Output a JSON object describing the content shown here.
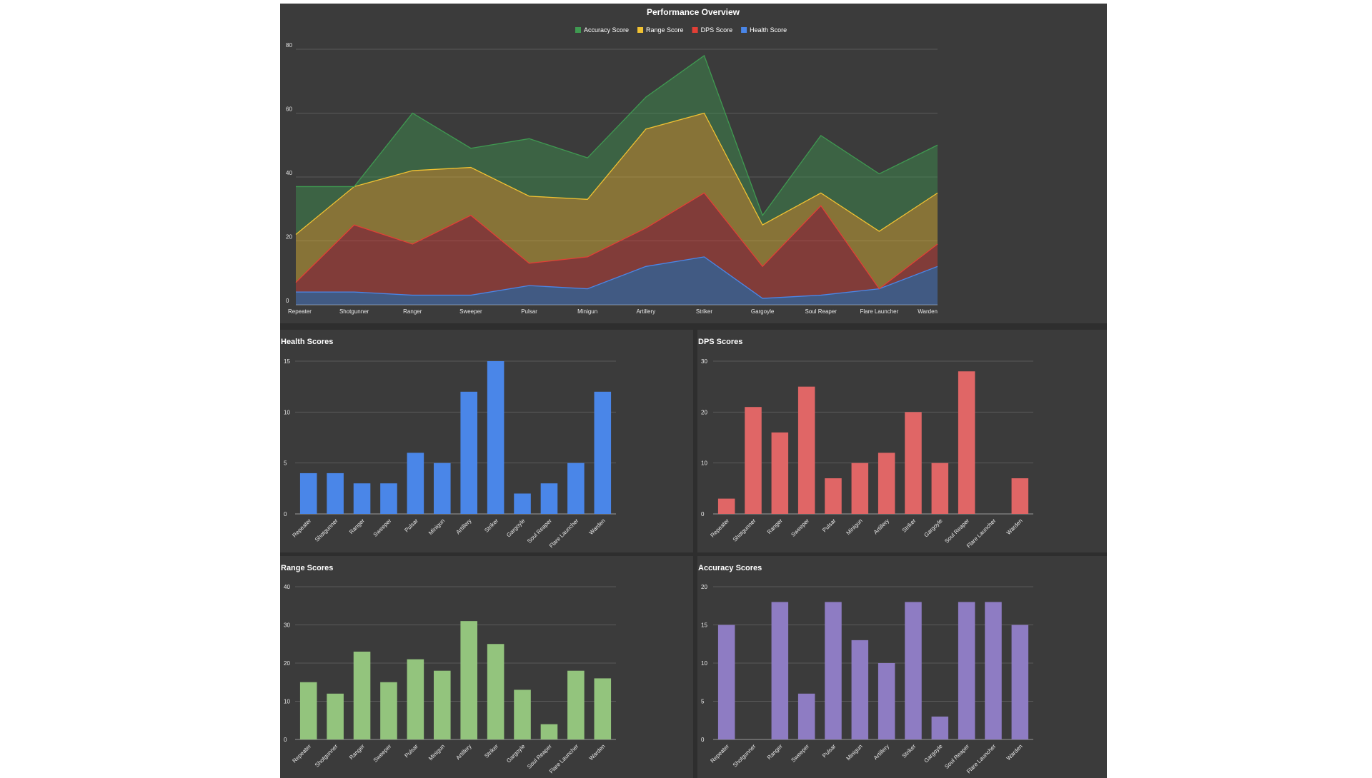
{
  "chart_data": [
    {
      "type": "area",
      "title": "Performance Overview",
      "legend_position": "top",
      "grid": true,
      "stacked": true,
      "ylim": [
        0,
        80
      ],
      "yticks": [
        0,
        20,
        40,
        60,
        80
      ],
      "categories": [
        "Repeater",
        "Shotgunner",
        "Ranger",
        "Sweeper",
        "Pulsar",
        "Minigun",
        "Artillery",
        "Striker",
        "Gargoyle",
        "Soul Reaper",
        "Flare Launcher",
        "Warden"
      ],
      "series": [
        {
          "name": "Accuracy Score",
          "color": "#3f9a51",
          "values": [
            15,
            0,
            18,
            6,
            18,
            13,
            10,
            18,
            3,
            18,
            18,
            15
          ]
        },
        {
          "name": "Range Score",
          "color": "#f1c232",
          "values": [
            15,
            12,
            23,
            15,
            21,
            18,
            31,
            25,
            13,
            4,
            18,
            16
          ]
        },
        {
          "name": "DPS Score",
          "color": "#e23f36",
          "values": [
            3,
            21,
            16,
            25,
            7,
            10,
            12,
            20,
            10,
            28,
            0,
            7
          ]
        },
        {
          "name": "Health Score",
          "color": "#4a86e8",
          "values": [
            4,
            4,
            3,
            3,
            6,
            5,
            12,
            15,
            2,
            3,
            5,
            12
          ]
        }
      ]
    },
    {
      "type": "bar",
      "title": "Health Scores",
      "color": "#4a86e8",
      "ylim": [
        0,
        15
      ],
      "yticks": [
        0,
        5,
        10,
        15
      ],
      "categories": [
        "Repeater",
        "Shotgunner",
        "Ranger",
        "Sweeper",
        "Pulsar",
        "Minigun",
        "Artillery",
        "Striker",
        "Gargoyle",
        "Soul Reaper",
        "Flare Launcher",
        "Warden"
      ],
      "values": [
        4,
        4,
        3,
        3,
        6,
        5,
        12,
        15,
        2,
        3,
        5,
        12
      ]
    },
    {
      "type": "bar",
      "title": "DPS Scores",
      "color": "#e06666",
      "ylim": [
        0,
        30
      ],
      "yticks": [
        0,
        10,
        20,
        30
      ],
      "categories": [
        "Repeater",
        "Shotgunner",
        "Ranger",
        "Sweeper",
        "Pulsar",
        "Minigun",
        "Artillery",
        "Striker",
        "Gargoyle",
        "Soul Reaper",
        "Flare Launcher",
        "Warden"
      ],
      "values": [
        3,
        21,
        16,
        25,
        7,
        10,
        12,
        20,
        10,
        28,
        0,
        7
      ]
    },
    {
      "type": "bar",
      "title": "Range Scores",
      "color": "#93c47d",
      "ylim": [
        0,
        40
      ],
      "yticks": [
        0,
        10,
        20,
        30,
        40
      ],
      "categories": [
        "Repeater",
        "Shotgunner",
        "Ranger",
        "Sweeper",
        "Pulsar",
        "Minigun",
        "Artillery",
        "Striker",
        "Gargoyle",
        "Soul Reaper",
        "Flare Launcher",
        "Warden"
      ],
      "values": [
        15,
        12,
        23,
        15,
        21,
        18,
        31,
        25,
        13,
        4,
        18,
        16
      ]
    },
    {
      "type": "bar",
      "title": "Accuracy Scores",
      "color": "#8e7cc3",
      "ylim": [
        0,
        20
      ],
      "yticks": [
        0,
        5,
        10,
        15,
        20
      ],
      "categories": [
        "Repeater",
        "Shotgunner",
        "Ranger",
        "Sweeper",
        "Pulsar",
        "Minigun",
        "Artillery",
        "Striker",
        "Gargoyle",
        "Soul Reaper",
        "Flare Launcher",
        "Warden"
      ],
      "values": [
        15,
        0,
        18,
        6,
        18,
        13,
        10,
        18,
        3,
        18,
        18,
        15
      ]
    }
  ]
}
